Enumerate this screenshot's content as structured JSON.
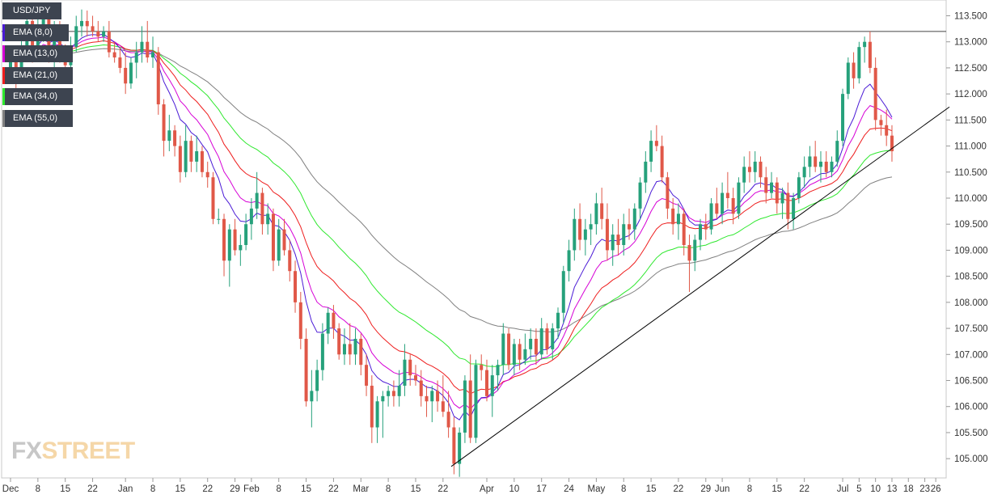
{
  "watermark": "FXSTREET",
  "colors": {
    "bull": "#26a17b",
    "bear": "#e05848",
    "ema8": "#4b1bd6",
    "ema13": "#d600d6",
    "ema21": "#ee1d1d",
    "ema34": "#2ee82e",
    "ema55": "#808080",
    "trendline": "#000000",
    "resistance": "#444444",
    "legend_bg": "#3d4450"
  },
  "chart_data": {
    "type": "candlestick",
    "symbol": "USD/JPY",
    "legend": [
      {
        "label": "USD/JPY",
        "color": "#3d4450"
      },
      {
        "label": "EMA (8,0)",
        "color": "#4b1bd6"
      },
      {
        "label": "EMA (13,0)",
        "color": "#d600d6"
      },
      {
        "label": "EMA (21,0)",
        "color": "#ee1d1d"
      },
      {
        "label": "EMA (34,0)",
        "color": "#2ee82e"
      },
      {
        "label": "EMA (55,0)",
        "color": "#808080"
      }
    ],
    "ylim": [
      104.6,
      113.7
    ],
    "y_ticks": [
      "105.000",
      "105.500",
      "106.000",
      "106.500",
      "107.000",
      "107.500",
      "108.000",
      "108.500",
      "109.000",
      "109.500",
      "110.000",
      "110.500",
      "111.000",
      "111.500",
      "112.000",
      "112.500",
      "113.000",
      "113.500"
    ],
    "x_ticks": [
      {
        "label": "Dec",
        "i": 0
      },
      {
        "label": "8",
        "i": 5
      },
      {
        "label": "15",
        "i": 10
      },
      {
        "label": "22",
        "i": 15
      },
      {
        "label": "Jan",
        "i": 21
      },
      {
        "label": "8",
        "i": 26
      },
      {
        "label": "15",
        "i": 31
      },
      {
        "label": "22",
        "i": 36
      },
      {
        "label": "29",
        "i": 41
      },
      {
        "label": "Feb",
        "i": 44
      },
      {
        "label": "8",
        "i": 49
      },
      {
        "label": "15",
        "i": 54
      },
      {
        "label": "22",
        "i": 59
      },
      {
        "label": "Mar",
        "i": 64
      },
      {
        "label": "8",
        "i": 69
      },
      {
        "label": "15",
        "i": 74
      },
      {
        "label": "22",
        "i": 79
      },
      {
        "label": "Apr",
        "i": 87
      },
      {
        "label": "10",
        "i": 92
      },
      {
        "label": "17",
        "i": 97
      },
      {
        "label": "24",
        "i": 102
      },
      {
        "label": "May",
        "i": 107
      },
      {
        "label": "8",
        "i": 112
      },
      {
        "label": "15",
        "i": 117
      },
      {
        "label": "22",
        "i": 122
      },
      {
        "label": "29",
        "i": 127
      },
      {
        "label": "Jun",
        "i": 130
      },
      {
        "label": "8",
        "i": 135
      },
      {
        "label": "15",
        "i": 140
      },
      {
        "label": "22",
        "i": 145
      },
      {
        "label": "Jul",
        "i": 152
      },
      {
        "label": "5",
        "i": 155
      },
      {
        "label": "10",
        "i": 158
      },
      {
        "label": "13",
        "i": 161
      },
      {
        "label": "18",
        "i": 164
      },
      {
        "label": "23",
        "i": 167
      },
      {
        "label": "26",
        "i": 169
      }
    ],
    "candles": [
      {
        "o": 112.5,
        "h": 112.9,
        "l": 112.2,
        "c": 112.7
      },
      {
        "o": 112.7,
        "h": 112.8,
        "l": 112.1,
        "c": 112.3
      },
      {
        "o": 112.3,
        "h": 113.1,
        "l": 112.2,
        "c": 112.9
      },
      {
        "o": 112.9,
        "h": 113.6,
        "l": 112.8,
        "c": 113.4
      },
      {
        "o": 113.4,
        "h": 113.7,
        "l": 112.6,
        "c": 112.8
      },
      {
        "o": 112.8,
        "h": 113.5,
        "l": 112.7,
        "c": 113.3
      },
      {
        "o": 113.3,
        "h": 113.7,
        "l": 113.0,
        "c": 113.5
      },
      {
        "o": 113.5,
        "h": 113.7,
        "l": 112.6,
        "c": 112.7
      },
      {
        "o": 112.7,
        "h": 113.4,
        "l": 112.5,
        "c": 113.2
      },
      {
        "o": 113.2,
        "h": 113.4,
        "l": 112.6,
        "c": 112.8
      },
      {
        "o": 112.8,
        "h": 112.95,
        "l": 112.3,
        "c": 112.55
      },
      {
        "o": 112.55,
        "h": 113.1,
        "l": 112.4,
        "c": 112.9
      },
      {
        "o": 112.9,
        "h": 113.5,
        "l": 112.8,
        "c": 113.3
      },
      {
        "o": 113.3,
        "h": 113.62,
        "l": 113.1,
        "c": 113.4
      },
      {
        "o": 113.4,
        "h": 113.6,
        "l": 113.1,
        "c": 113.3
      },
      {
        "o": 113.3,
        "h": 113.5,
        "l": 113.1,
        "c": 113.2
      },
      {
        "o": 113.2,
        "h": 113.4,
        "l": 113.0,
        "c": 113.1
      },
      {
        "o": 113.1,
        "h": 113.3,
        "l": 113.0,
        "c": 113.2
      },
      {
        "o": 113.2,
        "h": 113.4,
        "l": 112.7,
        "c": 112.8
      },
      {
        "o": 112.8,
        "h": 113.0,
        "l": 112.6,
        "c": 112.7
      },
      {
        "o": 112.7,
        "h": 112.9,
        "l": 112.4,
        "c": 112.5
      },
      {
        "o": 112.5,
        "h": 112.8,
        "l": 112.0,
        "c": 112.2
      },
      {
        "o": 112.2,
        "h": 112.7,
        "l": 112.1,
        "c": 112.6
      },
      {
        "o": 112.6,
        "h": 113.0,
        "l": 112.3,
        "c": 112.8
      },
      {
        "o": 112.8,
        "h": 113.3,
        "l": 112.6,
        "c": 113.0
      },
      {
        "o": 113.0,
        "h": 113.4,
        "l": 112.6,
        "c": 112.7
      },
      {
        "o": 112.7,
        "h": 113.1,
        "l": 112.5,
        "c": 112.8
      },
      {
        "o": 112.8,
        "h": 112.9,
        "l": 111.6,
        "c": 111.8
      },
      {
        "o": 111.8,
        "h": 111.9,
        "l": 110.8,
        "c": 111.1
      },
      {
        "o": 111.1,
        "h": 111.6,
        "l": 110.9,
        "c": 111.3
      },
      {
        "o": 111.3,
        "h": 111.4,
        "l": 110.8,
        "c": 111.0
      },
      {
        "o": 111.0,
        "h": 111.2,
        "l": 110.3,
        "c": 110.5
      },
      {
        "o": 110.5,
        "h": 111.4,
        "l": 110.4,
        "c": 111.1
      },
      {
        "o": 111.1,
        "h": 111.2,
        "l": 110.5,
        "c": 110.7
      },
      {
        "o": 110.7,
        "h": 111.2,
        "l": 110.5,
        "c": 110.9
      },
      {
        "o": 110.9,
        "h": 111.0,
        "l": 110.4,
        "c": 110.5
      },
      {
        "o": 110.5,
        "h": 110.7,
        "l": 110.2,
        "c": 110.4
      },
      {
        "o": 110.4,
        "h": 110.5,
        "l": 109.5,
        "c": 109.6
      },
      {
        "o": 109.6,
        "h": 109.8,
        "l": 109.5,
        "c": 109.6
      },
      {
        "o": 109.6,
        "h": 109.7,
        "l": 108.5,
        "c": 108.8
      },
      {
        "o": 108.8,
        "h": 109.5,
        "l": 108.3,
        "c": 109.4
      },
      {
        "o": 109.4,
        "h": 109.6,
        "l": 108.9,
        "c": 109.0
      },
      {
        "o": 109.0,
        "h": 109.3,
        "l": 108.7,
        "c": 109.1
      },
      {
        "o": 109.1,
        "h": 109.7,
        "l": 109.0,
        "c": 109.5
      },
      {
        "o": 109.5,
        "h": 110.0,
        "l": 109.2,
        "c": 109.8
      },
      {
        "o": 109.8,
        "h": 110.5,
        "l": 109.6,
        "c": 110.1
      },
      {
        "o": 110.1,
        "h": 110.2,
        "l": 109.3,
        "c": 109.5
      },
      {
        "o": 109.5,
        "h": 109.9,
        "l": 109.3,
        "c": 109.7
      },
      {
        "o": 109.7,
        "h": 109.8,
        "l": 108.6,
        "c": 108.8
      },
      {
        "o": 108.8,
        "h": 109.6,
        "l": 108.7,
        "c": 109.4
      },
      {
        "o": 109.4,
        "h": 109.6,
        "l": 108.9,
        "c": 109.0
      },
      {
        "o": 109.0,
        "h": 109.2,
        "l": 108.4,
        "c": 108.6
      },
      {
        "o": 108.6,
        "h": 108.8,
        "l": 107.8,
        "c": 108.0
      },
      {
        "o": 108.0,
        "h": 108.2,
        "l": 107.1,
        "c": 107.3
      },
      {
        "o": 107.3,
        "h": 107.5,
        "l": 106.0,
        "c": 106.1
      },
      {
        "o": 106.1,
        "h": 106.7,
        "l": 105.6,
        "c": 106.3
      },
      {
        "o": 106.3,
        "h": 106.9,
        "l": 106.1,
        "c": 106.7
      },
      {
        "o": 106.7,
        "h": 107.6,
        "l": 106.5,
        "c": 107.4
      },
      {
        "o": 107.4,
        "h": 107.9,
        "l": 107.2,
        "c": 107.8
      },
      {
        "o": 107.8,
        "h": 107.95,
        "l": 107.3,
        "c": 107.5
      },
      {
        "o": 107.5,
        "h": 107.6,
        "l": 106.9,
        "c": 107.0
      },
      {
        "o": 107.0,
        "h": 107.5,
        "l": 106.8,
        "c": 107.2
      },
      {
        "o": 107.2,
        "h": 107.6,
        "l": 106.8,
        "c": 107.0
      },
      {
        "o": 107.0,
        "h": 107.5,
        "l": 106.8,
        "c": 107.3
      },
      {
        "o": 107.3,
        "h": 107.4,
        "l": 106.6,
        "c": 106.8
      },
      {
        "o": 106.8,
        "h": 107.0,
        "l": 106.2,
        "c": 106.4
      },
      {
        "o": 106.4,
        "h": 106.6,
        "l": 105.3,
        "c": 105.6
      },
      {
        "o": 105.6,
        "h": 106.2,
        "l": 105.3,
        "c": 106.1
      },
      {
        "o": 106.1,
        "h": 106.3,
        "l": 105.4,
        "c": 106.2
      },
      {
        "o": 106.2,
        "h": 106.4,
        "l": 106.0,
        "c": 106.3
      },
      {
        "o": 106.3,
        "h": 106.5,
        "l": 106.0,
        "c": 106.2
      },
      {
        "o": 106.2,
        "h": 106.7,
        "l": 106.0,
        "c": 106.4
      },
      {
        "o": 106.4,
        "h": 107.2,
        "l": 106.2,
        "c": 106.9
      },
      {
        "o": 106.9,
        "h": 107.0,
        "l": 106.4,
        "c": 106.6
      },
      {
        "o": 106.6,
        "h": 106.8,
        "l": 106.4,
        "c": 106.5
      },
      {
        "o": 106.5,
        "h": 106.7,
        "l": 106.0,
        "c": 106.2
      },
      {
        "o": 106.2,
        "h": 106.4,
        "l": 105.8,
        "c": 106.1
      },
      {
        "o": 106.1,
        "h": 106.4,
        "l": 105.7,
        "c": 106.3
      },
      {
        "o": 106.3,
        "h": 106.5,
        "l": 105.9,
        "c": 106.1
      },
      {
        "o": 106.1,
        "h": 106.6,
        "l": 105.8,
        "c": 105.9
      },
      {
        "o": 105.9,
        "h": 106.3,
        "l": 105.4,
        "c": 105.6
      },
      {
        "o": 105.6,
        "h": 105.8,
        "l": 104.7,
        "c": 104.9
      },
      {
        "o": 104.9,
        "h": 105.6,
        "l": 104.65,
        "c": 105.5
      },
      {
        "o": 105.5,
        "h": 106.6,
        "l": 105.3,
        "c": 106.5
      },
      {
        "o": 106.5,
        "h": 107.0,
        "l": 105.3,
        "c": 105.4
      },
      {
        "o": 105.4,
        "h": 106.9,
        "l": 105.3,
        "c": 106.8
      },
      {
        "o": 106.8,
        "h": 107.0,
        "l": 106.5,
        "c": 106.7
      },
      {
        "o": 106.7,
        "h": 106.9,
        "l": 106.1,
        "c": 106.2
      },
      {
        "o": 106.2,
        "h": 106.8,
        "l": 105.8,
        "c": 106.6
      },
      {
        "o": 106.6,
        "h": 106.9,
        "l": 106.3,
        "c": 106.8
      },
      {
        "o": 106.8,
        "h": 107.6,
        "l": 106.6,
        "c": 107.4
      },
      {
        "o": 107.4,
        "h": 107.5,
        "l": 106.7,
        "c": 106.8
      },
      {
        "o": 106.8,
        "h": 107.3,
        "l": 106.6,
        "c": 107.2
      },
      {
        "o": 107.2,
        "h": 107.3,
        "l": 106.7,
        "c": 106.9
      },
      {
        "o": 106.9,
        "h": 107.4,
        "l": 106.8,
        "c": 107.1
      },
      {
        "o": 107.1,
        "h": 107.5,
        "l": 106.9,
        "c": 107.3
      },
      {
        "o": 107.3,
        "h": 107.5,
        "l": 106.8,
        "c": 107.0
      },
      {
        "o": 107.0,
        "h": 107.7,
        "l": 106.9,
        "c": 107.5
      },
      {
        "o": 107.5,
        "h": 107.6,
        "l": 107.0,
        "c": 107.1
      },
      {
        "o": 107.1,
        "h": 107.6,
        "l": 106.9,
        "c": 107.5
      },
      {
        "o": 107.5,
        "h": 107.9,
        "l": 107.3,
        "c": 107.8
      },
      {
        "o": 107.8,
        "h": 108.7,
        "l": 107.6,
        "c": 108.6
      },
      {
        "o": 108.6,
        "h": 109.2,
        "l": 108.4,
        "c": 109.0
      },
      {
        "o": 109.0,
        "h": 109.8,
        "l": 108.8,
        "c": 109.6
      },
      {
        "o": 109.6,
        "h": 109.9,
        "l": 109.0,
        "c": 109.2
      },
      {
        "o": 109.2,
        "h": 109.6,
        "l": 108.9,
        "c": 109.4
      },
      {
        "o": 109.4,
        "h": 109.7,
        "l": 109.1,
        "c": 109.5
      },
      {
        "o": 109.5,
        "h": 110.1,
        "l": 109.3,
        "c": 109.9
      },
      {
        "o": 109.9,
        "h": 110.2,
        "l": 109.4,
        "c": 109.6
      },
      {
        "o": 109.6,
        "h": 109.9,
        "l": 108.8,
        "c": 109.0
      },
      {
        "o": 109.0,
        "h": 109.5,
        "l": 108.7,
        "c": 109.3
      },
      {
        "o": 109.3,
        "h": 109.6,
        "l": 108.9,
        "c": 109.1
      },
      {
        "o": 109.1,
        "h": 109.7,
        "l": 108.9,
        "c": 109.5
      },
      {
        "o": 109.5,
        "h": 109.8,
        "l": 109.2,
        "c": 109.4
      },
      {
        "o": 109.4,
        "h": 109.9,
        "l": 109.2,
        "c": 109.8
      },
      {
        "o": 109.8,
        "h": 110.4,
        "l": 109.6,
        "c": 110.3
      },
      {
        "o": 110.3,
        "h": 110.9,
        "l": 110.1,
        "c": 110.7
      },
      {
        "o": 110.7,
        "h": 111.3,
        "l": 110.5,
        "c": 111.1
      },
      {
        "o": 111.1,
        "h": 111.4,
        "l": 110.9,
        "c": 111.0
      },
      {
        "o": 111.0,
        "h": 111.2,
        "l": 110.3,
        "c": 110.4
      },
      {
        "o": 110.4,
        "h": 110.5,
        "l": 109.6,
        "c": 109.8
      },
      {
        "o": 109.8,
        "h": 110.0,
        "l": 109.3,
        "c": 109.5
      },
      {
        "o": 109.5,
        "h": 109.9,
        "l": 109.2,
        "c": 109.7
      },
      {
        "o": 109.7,
        "h": 109.8,
        "l": 108.9,
        "c": 109.1
      },
      {
        "o": 109.1,
        "h": 109.3,
        "l": 108.2,
        "c": 108.8
      },
      {
        "o": 108.8,
        "h": 109.3,
        "l": 108.6,
        "c": 109.2
      },
      {
        "o": 109.2,
        "h": 109.6,
        "l": 109.0,
        "c": 109.5
      },
      {
        "o": 109.5,
        "h": 109.7,
        "l": 109.2,
        "c": 109.4
      },
      {
        "o": 109.4,
        "h": 110.0,
        "l": 109.3,
        "c": 109.9
      },
      {
        "o": 109.9,
        "h": 110.2,
        "l": 109.6,
        "c": 109.7
      },
      {
        "o": 109.7,
        "h": 110.3,
        "l": 109.5,
        "c": 110.1
      },
      {
        "o": 110.1,
        "h": 110.5,
        "l": 109.8,
        "c": 110.0
      },
      {
        "o": 110.0,
        "h": 110.2,
        "l": 109.5,
        "c": 109.7
      },
      {
        "o": 109.7,
        "h": 110.4,
        "l": 109.6,
        "c": 110.3
      },
      {
        "o": 110.3,
        "h": 110.8,
        "l": 110.1,
        "c": 110.6
      },
      {
        "o": 110.6,
        "h": 110.9,
        "l": 110.3,
        "c": 110.5
      },
      {
        "o": 110.5,
        "h": 110.9,
        "l": 110.3,
        "c": 110.7
      },
      {
        "o": 110.7,
        "h": 110.8,
        "l": 110.2,
        "c": 110.4
      },
      {
        "o": 110.4,
        "h": 110.6,
        "l": 109.9,
        "c": 110.1
      },
      {
        "o": 110.1,
        "h": 110.5,
        "l": 110.0,
        "c": 110.3
      },
      {
        "o": 110.3,
        "h": 110.4,
        "l": 109.7,
        "c": 109.9
      },
      {
        "o": 109.9,
        "h": 110.2,
        "l": 109.6,
        "c": 110.1
      },
      {
        "o": 110.1,
        "h": 110.3,
        "l": 109.4,
        "c": 109.6
      },
      {
        "o": 109.6,
        "h": 110.1,
        "l": 109.4,
        "c": 110.0
      },
      {
        "o": 110.0,
        "h": 110.5,
        "l": 109.9,
        "c": 110.4
      },
      {
        "o": 110.4,
        "h": 110.8,
        "l": 110.2,
        "c": 110.6
      },
      {
        "o": 110.6,
        "h": 111.0,
        "l": 110.4,
        "c": 110.8
      },
      {
        "o": 110.8,
        "h": 111.1,
        "l": 110.5,
        "c": 110.6
      },
      {
        "o": 110.6,
        "h": 110.9,
        "l": 110.3,
        "c": 110.7
      },
      {
        "o": 110.7,
        "h": 110.9,
        "l": 110.4,
        "c": 110.5
      },
      {
        "o": 110.5,
        "h": 110.8,
        "l": 110.4,
        "c": 110.7
      },
      {
        "o": 110.7,
        "h": 111.3,
        "l": 110.6,
        "c": 111.1
      },
      {
        "o": 111.1,
        "h": 112.1,
        "l": 111.0,
        "c": 112.0
      },
      {
        "o": 112.0,
        "h": 112.7,
        "l": 111.9,
        "c": 112.6
      },
      {
        "o": 112.6,
        "h": 112.8,
        "l": 112.1,
        "c": 112.3
      },
      {
        "o": 112.3,
        "h": 113.0,
        "l": 112.2,
        "c": 112.9
      },
      {
        "o": 112.9,
        "h": 113.1,
        "l": 112.6,
        "c": 113.0
      },
      {
        "o": 113.0,
        "h": 113.2,
        "l": 112.4,
        "c": 112.5
      },
      {
        "o": 112.5,
        "h": 112.7,
        "l": 111.3,
        "c": 111.5
      },
      {
        "o": 111.5,
        "h": 111.6,
        "l": 111.2,
        "c": 111.4
      },
      {
        "o": 111.4,
        "h": 111.7,
        "l": 111.0,
        "c": 111.2
      },
      {
        "o": 111.2,
        "h": 111.4,
        "l": 110.7,
        "c": 110.9
      }
    ],
    "trendline": [
      {
        "i": 80.5,
        "y": 104.85
      },
      {
        "i": 171.5,
        "y": 111.75
      }
    ],
    "resistance_level": 113.2
  }
}
